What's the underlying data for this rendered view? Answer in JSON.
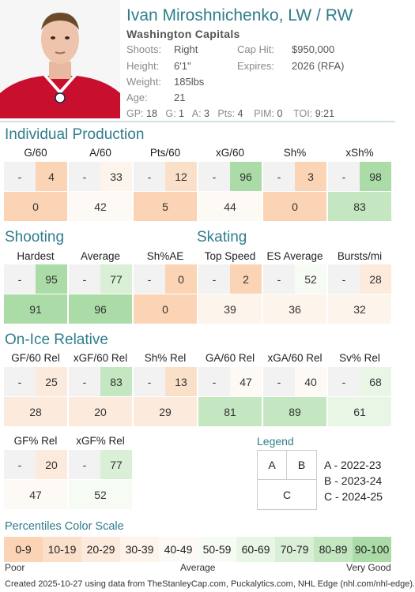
{
  "player": {
    "name": "Ivan Miroshnichenko, LW / RW",
    "team": "Washington Capitals",
    "shoots_label": "Shoots:",
    "shoots": "Right",
    "height_label": "Height:",
    "height": "6'1\"",
    "weight_label": "Weight:",
    "weight": "185lbs",
    "age_label": "Age:",
    "age": "21",
    "caphit_label": "Cap Hit:",
    "caphit": "$950,000",
    "expires_label": "Expires:",
    "expires": "2026 (RFA)",
    "stats": {
      "gp_label": "GP:",
      "gp": "18",
      "g_label": "G:",
      "g": "1",
      "a_label": "A:",
      "a": "3",
      "pts_label": "Pts:",
      "pts": "4",
      "pim_label": "PIM:",
      "pim": "0",
      "toi_label": "TOI:",
      "toi": "9:21"
    }
  },
  "sections": {
    "individual": "Individual Production",
    "shooting": "Shooting",
    "skating": "Skating",
    "onice": "On-Ice Relative"
  },
  "metrics": {
    "g60": {
      "label": "G/60",
      "a": "-",
      "b": "4",
      "c": "0"
    },
    "a60": {
      "label": "A/60",
      "a": "-",
      "b": "33",
      "c": "42"
    },
    "pts60": {
      "label": "Pts/60",
      "a": "-",
      "b": "12",
      "c": "5"
    },
    "xg60": {
      "label": "xG/60",
      "a": "-",
      "b": "96",
      "c": "44"
    },
    "shp": {
      "label": "Sh%",
      "a": "-",
      "b": "3",
      "c": "0"
    },
    "xshp": {
      "label": "xSh%",
      "a": "-",
      "b": "98",
      "c": "83"
    },
    "hardest": {
      "label": "Hardest",
      "a": "-",
      "b": "95",
      "c": "91"
    },
    "average": {
      "label": "Average",
      "a": "-",
      "b": "77",
      "c": "96"
    },
    "shae": {
      "label": "Sh%AE",
      "a": "-",
      "b": "0",
      "c": "0"
    },
    "topspeed": {
      "label": "Top Speed",
      "a": "-",
      "b": "2",
      "c": "39"
    },
    "esavg": {
      "label": "ES Average",
      "a": "-",
      "b": "52",
      "c": "36"
    },
    "bursts": {
      "label": "Bursts/mi",
      "a": "-",
      "b": "28",
      "c": "32"
    },
    "gf60rel": {
      "label": "GF/60 Rel",
      "a": "-",
      "b": "25",
      "c": "28"
    },
    "xgf60rel": {
      "label": "xGF/60 Rel",
      "a": "-",
      "b": "83",
      "c": "20"
    },
    "shrel": {
      "label": "Sh% Rel",
      "a": "-",
      "b": "13",
      "c": "29"
    },
    "ga60rel": {
      "label": "GA/60 Rel",
      "a": "-",
      "b": "47",
      "c": "81"
    },
    "xga60rel": {
      "label": "xGA/60 Rel",
      "a": "-",
      "b": "40",
      "c": "89"
    },
    "svrel": {
      "label": "Sv% Rel",
      "a": "-",
      "b": "68",
      "c": "61"
    },
    "gfprel": {
      "label": "GF% Rel",
      "a": "-",
      "b": "20",
      "c": "47"
    },
    "xgfprel": {
      "label": "xGF% Rel",
      "a": "-",
      "b": "77",
      "c": "52"
    }
  },
  "legend": {
    "title": "Legend",
    "a": "A",
    "b": "B",
    "c": "C",
    "a_desc": "A - 2022-23",
    "b_desc": "B - 2023-24",
    "c_desc": "C - 2024-25"
  },
  "scale": {
    "title": "Percentiles Color Scale",
    "ranges": [
      "0-9",
      "10-19",
      "20-29",
      "30-39",
      "40-49",
      "50-59",
      "60-69",
      "70-79",
      "80-89",
      "90-100"
    ],
    "colors": [
      "#fad4b4",
      "#fbe0c9",
      "#fcebdc",
      "#fdf4ec",
      "#fdfaf5",
      "#f6fbf4",
      "#e9f6e6",
      "#d9efd6",
      "#c4e6c0",
      "#abdca7"
    ],
    "poor": "Poor",
    "average": "Average",
    "very_good": "Very Good"
  },
  "footer": "Created 2025-10-27 using data from TheStanleyCap.com, Puckalytics.com, NHL Edge (nhl.com/nhl-edge)."
}
